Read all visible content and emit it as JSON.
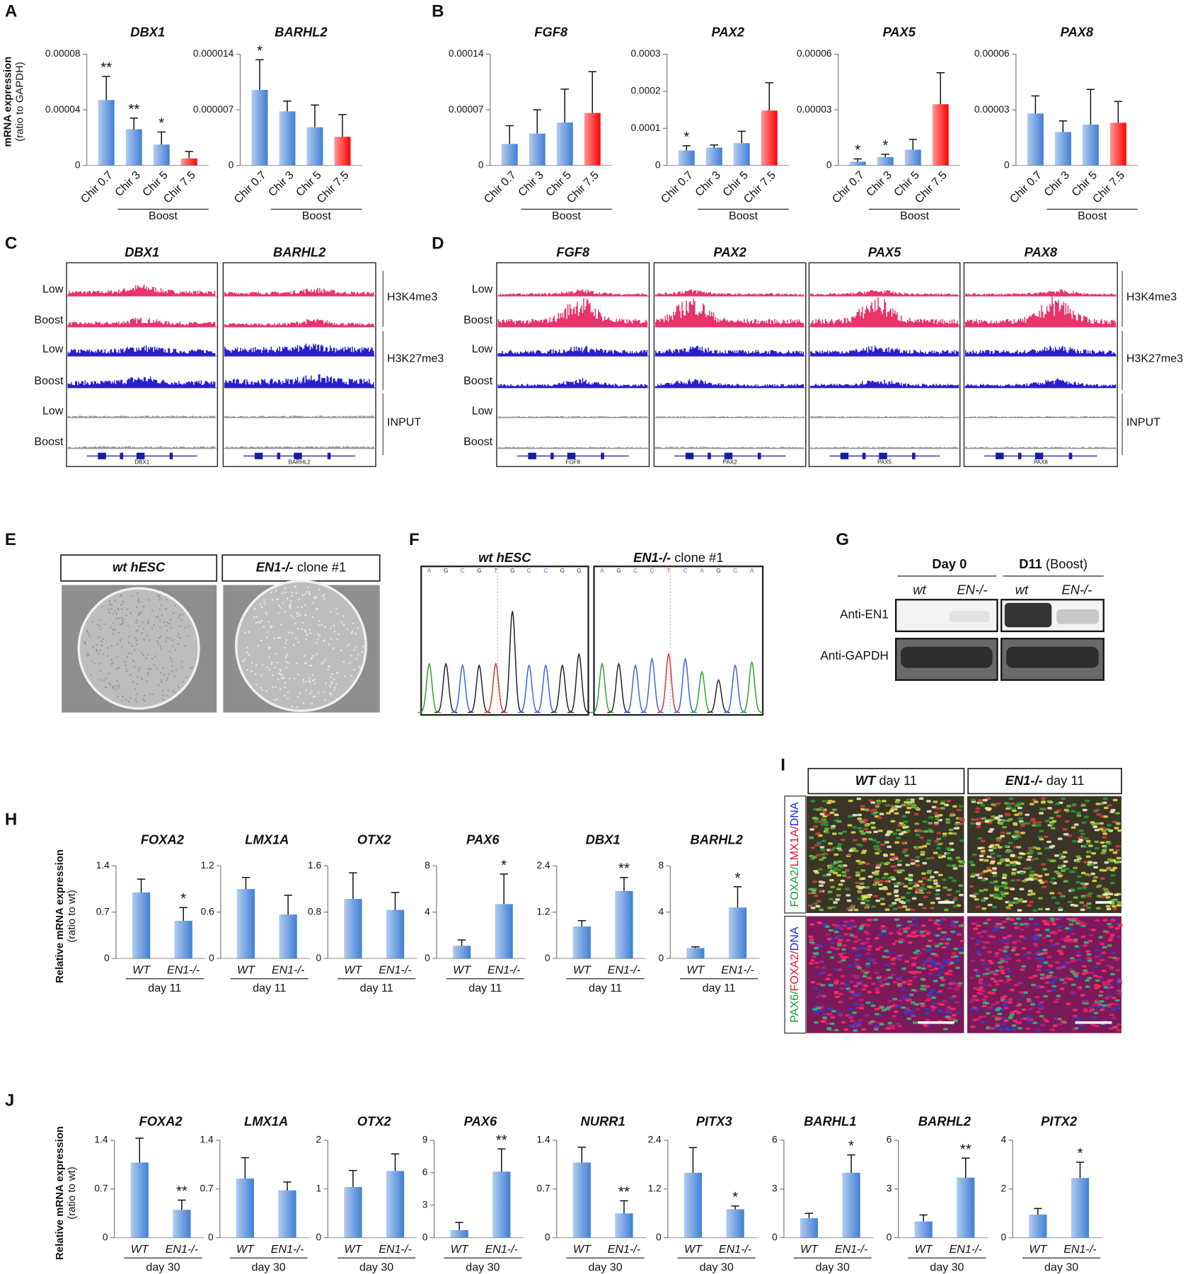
{
  "chart_data": [
    {
      "type": "bar",
      "title": "DBX1",
      "ylabel": [
        "mRNA expression",
        "(ratio to GAPDH)"
      ],
      "categories": [
        "Chir 0.7",
        "Chir 3",
        "Chir 5",
        "Chir 7.5"
      ],
      "group_label": "Boost",
      "values": [
        4.7e-05,
        2.6e-05,
        1.5e-05,
        5e-06
      ],
      "errors": [
        1.7e-05,
        8e-06,
        9e-06,
        5e-06
      ],
      "annotations": [
        "**",
        "**",
        "*",
        null
      ],
      "colors": [
        "#3f7fd6",
        "#3f7fd6",
        "#3f7fd6",
        "#ff0000"
      ],
      "ylim": [
        0,
        8e-05
      ],
      "yticks": [
        0,
        4e-05,
        8e-05
      ]
    },
    {
      "type": "bar",
      "title": "BARHL2",
      "categories": [
        "Chir 0.7",
        "Chir 3",
        "Chir 5",
        "Chir 7.5"
      ],
      "group_label": "Boost",
      "values": [
        9.5e-06,
        6.8e-06,
        4.8e-06,
        3.6e-06
      ],
      "errors": [
        3.8e-06,
        1.3e-06,
        2.8e-06,
        2.8e-06
      ],
      "annotations": [
        "*",
        null,
        null,
        null
      ],
      "colors": [
        "#3f7fd6",
        "#3f7fd6",
        "#3f7fd6",
        "#ff0000"
      ],
      "ylim": [
        0,
        1.4e-05
      ],
      "yticks": [
        0,
        7e-06,
        1.4e-05
      ]
    },
    {
      "type": "bar",
      "title": "FGF8",
      "categories": [
        "Chir 0.7",
        "Chir 3",
        "Chir 5",
        "Chir 7.5"
      ],
      "group_label": "Boost",
      "values": [
        2.7e-05,
        4e-05,
        5.4e-05,
        6.6e-05
      ],
      "errors": [
        2.3e-05,
        3e-05,
        4.2e-05,
        5.2e-05
      ],
      "annotations": [
        null,
        null,
        null,
        null
      ],
      "colors": [
        "#3f7fd6",
        "#3f7fd6",
        "#3f7fd6",
        "#ff0000"
      ],
      "ylim": [
        0,
        0.00014
      ],
      "yticks": [
        0,
        7e-05,
        0.00014
      ]
    },
    {
      "type": "bar",
      "title": "PAX2",
      "categories": [
        "Chir 0.7",
        "Chir 3",
        "Chir 5",
        "Chir 7.5"
      ],
      "group_label": "Boost",
      "values": [
        4e-05,
        4.8e-05,
        6e-05,
        0.000148
      ],
      "errors": [
        1.3e-05,
        7e-06,
        3.2e-05,
        7.5e-05
      ],
      "annotations": [
        "*",
        null,
        null,
        null
      ],
      "colors": [
        "#3f7fd6",
        "#3f7fd6",
        "#3f7fd6",
        "#ff0000"
      ],
      "ylim": [
        0,
        0.0003
      ],
      "yticks": [
        0,
        0.0001,
        0.0002,
        0.0003
      ]
    },
    {
      "type": "bar",
      "title": "PAX5",
      "categories": [
        "Chir 0.7",
        "Chir 3",
        "Chir 5",
        "Chir 7.5"
      ],
      "group_label": "Boost",
      "values": [
        2e-06,
        4.5e-06,
        8.5e-06,
        3.3e-05
      ],
      "errors": [
        1.5e-06,
        1.5e-06,
        5.5e-06,
        1.7e-05
      ],
      "annotations": [
        "*",
        "*",
        null,
        null
      ],
      "colors": [
        "#3f7fd6",
        "#3f7fd6",
        "#3f7fd6",
        "#ff0000"
      ],
      "ylim": [
        0,
        6e-05
      ],
      "yticks": [
        0,
        3e-05,
        6e-05
      ]
    },
    {
      "type": "bar",
      "title": "PAX8",
      "categories": [
        "Chir 0.7",
        "Chir 3",
        "Chir 5",
        "Chir 7.5"
      ],
      "group_label": "Boost",
      "values": [
        2.8e-05,
        1.8e-05,
        2.2e-05,
        2.3e-05
      ],
      "errors": [
        9.5e-06,
        6e-06,
        1.9e-05,
        1.15e-05
      ],
      "annotations": [
        null,
        null,
        null,
        null
      ],
      "colors": [
        "#3f7fd6",
        "#3f7fd6",
        "#3f7fd6",
        "#ff0000"
      ],
      "ylim": [
        0,
        6e-05
      ],
      "yticks": [
        0,
        3e-05,
        6e-05
      ]
    },
    {
      "type": "bar",
      "title": "FOXA2",
      "ylabel": [
        "Relative mRNA expression",
        "(ratio to wt)"
      ],
      "categories": [
        "WT",
        "EN1-/-"
      ],
      "group_label": "day 11",
      "values": [
        1,
        0.57
      ],
      "errors": [
        0.2,
        0.2
      ],
      "annotations": [
        null,
        "*"
      ],
      "colors": [
        "#3f7fd6",
        "#3f7fd6"
      ],
      "ylim": [
        0,
        1.4
      ],
      "yticks": [
        0,
        0.7,
        1.4
      ]
    },
    {
      "type": "bar",
      "title": "LMX1A",
      "categories": [
        "WT",
        "EN1-/-"
      ],
      "group_label": "day 11",
      "values": [
        0.9,
        0.57
      ],
      "errors": [
        0.15,
        0.25
      ],
      "annotations": [
        null,
        null
      ],
      "colors": [
        "#3f7fd6",
        "#3f7fd6"
      ],
      "ylim": [
        0,
        1.2
      ],
      "yticks": [
        0,
        0.6,
        1.2
      ]
    },
    {
      "type": "bar",
      "title": "OTX2",
      "categories": [
        "WT",
        "EN1-/-"
      ],
      "group_label": "day 11",
      "values": [
        1.03,
        0.84
      ],
      "errors": [
        0.45,
        0.3
      ],
      "annotations": [
        null,
        null
      ],
      "colors": [
        "#3f7fd6",
        "#3f7fd6"
      ],
      "ylim": [
        0,
        1.6
      ],
      "yticks": [
        0,
        0.8,
        1.6
      ]
    },
    {
      "type": "bar",
      "title": "PAX6",
      "categories": [
        "WT",
        "EN1-/-"
      ],
      "group_label": "day 11",
      "values": [
        1.1,
        4.7
      ],
      "errors": [
        0.5,
        2.6
      ],
      "annotations": [
        null,
        "*"
      ],
      "colors": [
        "#3f7fd6",
        "#3f7fd6"
      ],
      "ylim": [
        0,
        8
      ],
      "yticks": [
        0,
        4,
        8
      ]
    },
    {
      "type": "bar",
      "title": "DBX1",
      "categories": [
        "WT",
        "EN1-/-"
      ],
      "group_label": "day 11",
      "values": [
        0.83,
        1.75
      ],
      "errors": [
        0.15,
        0.35
      ],
      "annotations": [
        null,
        "**"
      ],
      "colors": [
        "#3f7fd6",
        "#3f7fd6"
      ],
      "ylim": [
        0,
        2.4
      ],
      "yticks": [
        0,
        1.2,
        2.4
      ]
    },
    {
      "type": "bar",
      "title": "BARHL2",
      "categories": [
        "WT",
        "EN1-/-"
      ],
      "group_label": "day 11",
      "values": [
        0.9,
        4.4
      ],
      "errors": [
        0.1,
        1.8
      ],
      "annotations": [
        null,
        "*"
      ],
      "colors": [
        "#3f7fd6",
        "#3f7fd6"
      ],
      "ylim": [
        0,
        8
      ],
      "yticks": [
        0,
        4,
        8
      ]
    },
    {
      "type": "bar",
      "title": "FOXA2",
      "ylabel": [
        "Relative mRNA expression",
        "(ratio to wt)"
      ],
      "categories": [
        "WT",
        "EN1-/-"
      ],
      "group_label": "day 30",
      "values": [
        1.08,
        0.4
      ],
      "errors": [
        0.35,
        0.14
      ],
      "annotations": [
        null,
        "**"
      ],
      "colors": [
        "#3f7fd6",
        "#3f7fd6"
      ],
      "ylim": [
        0,
        1.4
      ],
      "yticks": [
        0,
        0.7,
        1.4
      ]
    },
    {
      "type": "bar",
      "title": "LMX1A",
      "categories": [
        "WT",
        "EN1-/-"
      ],
      "group_label": "day 30",
      "values": [
        0.85,
        0.68
      ],
      "errors": [
        0.3,
        0.12
      ],
      "annotations": [
        null,
        null
      ],
      "colors": [
        "#3f7fd6",
        "#3f7fd6"
      ],
      "ylim": [
        0,
        1.4
      ],
      "yticks": [
        0,
        0.7,
        1.4
      ]
    },
    {
      "type": "bar",
      "title": "OTX2",
      "categories": [
        "WT",
        "EN1-/-"
      ],
      "group_label": "day 30",
      "values": [
        1.04,
        1.37
      ],
      "errors": [
        0.34,
        0.35
      ],
      "annotations": [
        null,
        null
      ],
      "colors": [
        "#3f7fd6",
        "#3f7fd6"
      ],
      "ylim": [
        0,
        2
      ],
      "yticks": [
        0,
        1,
        2
      ]
    },
    {
      "type": "bar",
      "title": "PAX6",
      "categories": [
        "WT",
        "EN1-/-"
      ],
      "group_label": "day 30",
      "values": [
        0.7,
        6.1
      ],
      "errors": [
        0.7,
        2.1
      ],
      "annotations": [
        null,
        "**"
      ],
      "colors": [
        "#3f7fd6",
        "#3f7fd6"
      ],
      "ylim": [
        0,
        9
      ],
      "yticks": [
        0,
        3,
        6,
        9
      ]
    },
    {
      "type": "bar",
      "title": "NURR1",
      "categories": [
        "WT",
        "EN1-/-"
      ],
      "group_label": "day 30",
      "values": [
        1.08,
        0.35
      ],
      "errors": [
        0.22,
        0.18
      ],
      "annotations": [
        null,
        "**"
      ],
      "colors": [
        "#3f7fd6",
        "#3f7fd6"
      ],
      "ylim": [
        0,
        1.4
      ],
      "yticks": [
        0,
        0.7,
        1.4
      ]
    },
    {
      "type": "bar",
      "title": "PITX3",
      "categories": [
        "WT",
        "EN1-/-"
      ],
      "group_label": "day 30",
      "values": [
        1.6,
        0.7
      ],
      "errors": [
        0.62,
        0.08
      ],
      "annotations": [
        null,
        "*"
      ],
      "colors": [
        "#3f7fd6",
        "#3f7fd6"
      ],
      "ylim": [
        0,
        2.4
      ],
      "yticks": [
        0,
        1.2,
        2.4
      ]
    },
    {
      "type": "bar",
      "title": "BARHL1",
      "categories": [
        "WT",
        "EN1-/-"
      ],
      "group_label": "day 30",
      "values": [
        1.2,
        4
      ],
      "errors": [
        0.3,
        1.1
      ],
      "annotations": [
        null,
        "*"
      ],
      "colors": [
        "#3f7fd6",
        "#3f7fd6"
      ],
      "ylim": [
        0,
        6
      ],
      "yticks": [
        0,
        3,
        6
      ]
    },
    {
      "type": "bar",
      "title": "BARHL2",
      "categories": [
        "WT",
        "EN1-/-"
      ],
      "group_label": "day 30",
      "values": [
        1,
        3.7
      ],
      "errors": [
        0.4,
        1.2
      ],
      "annotations": [
        null,
        "**"
      ],
      "colors": [
        "#3f7fd6",
        "#3f7fd6"
      ],
      "ylim": [
        0,
        6
      ],
      "yticks": [
        0,
        3,
        6
      ]
    },
    {
      "type": "bar",
      "title": "PITX2",
      "categories": [
        "WT",
        "EN1-/-"
      ],
      "group_label": "day 30",
      "values": [
        0.95,
        2.45
      ],
      "errors": [
        0.25,
        0.65
      ],
      "annotations": [
        null,
        "*"
      ],
      "colors": [
        "#3f7fd6",
        "#3f7fd6"
      ],
      "ylim": [
        0,
        4
      ],
      "yticks": [
        0,
        2,
        4
      ]
    }
  ],
  "panel_labels": [
    "A",
    "B",
    "C",
    "D",
    "E",
    "F",
    "G",
    "H",
    "I",
    "J"
  ],
  "chip": {
    "row_labels": [
      "Low",
      "Boost",
      "Low",
      "Boost",
      "Low",
      "Boost"
    ],
    "marks": [
      "H3K4me3",
      "H3K27me3",
      "INPUT"
    ],
    "panel_c_genes": [
      "DBX1",
      "BARHL2"
    ],
    "panel_d_genes": [
      "FGF8",
      "PAX2",
      "PAX5",
      "PAX8"
    ]
  },
  "colony": {
    "titles": [
      {
        "em": "wt hESC"
      },
      {
        "em": "EN1-/-",
        "rest": " clone #1"
      }
    ]
  },
  "sequencing": {
    "titles": [
      {
        "em": "wt hESC"
      },
      {
        "em": "EN1-/-",
        "rest": " clone #1"
      }
    ],
    "reads": [
      [
        "A",
        "G",
        "C",
        "G",
        "T",
        "G",
        "C",
        "C",
        "G",
        "G"
      ],
      [
        "A",
        "G",
        "C",
        "C",
        "T",
        "C",
        "A",
        "G",
        "C",
        "A"
      ]
    ]
  },
  "blot": {
    "groups": [
      {
        "label": "Day 0"
      },
      {
        "label": "D11",
        "note": " (Boost)"
      }
    ],
    "lanes": [
      "wt",
      "EN-/-",
      "wt",
      "EN-/-"
    ],
    "rows": [
      "Anti-EN1",
      "Anti-GAPDH"
    ]
  },
  "immuno": {
    "columns": [
      {
        "em": "WT",
        "rest": " day 11"
      },
      {
        "em": "EN1-/-",
        "rest": " day 11"
      }
    ],
    "stains": [
      {
        "parts": [
          "FOXA2/",
          "LMX1A/",
          "DNA"
        ],
        "colors": [
          "#18963a",
          "#e0102a",
          "#1a2ad0"
        ]
      },
      {
        "parts": [
          "PAX6/",
          "FOXA2/",
          "DNA"
        ],
        "colors": [
          "#18963a",
          "#e0102a",
          "#1a2ad0"
        ]
      }
    ]
  }
}
